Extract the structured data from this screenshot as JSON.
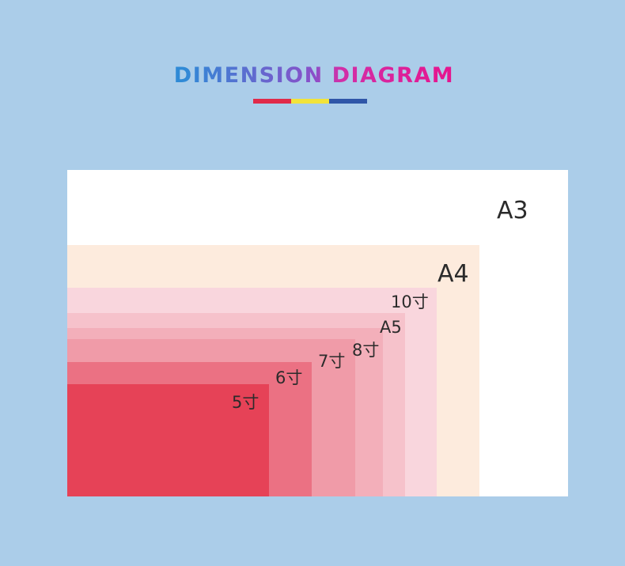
{
  "title": "DIMENSION DIAGRAM",
  "sizes": [
    {
      "label": "A3"
    },
    {
      "label": "A4"
    },
    {
      "label": "10寸"
    },
    {
      "label": "A5"
    },
    {
      "label": "8寸"
    },
    {
      "label": "7寸"
    },
    {
      "label": "6寸"
    },
    {
      "label": "5寸"
    }
  ]
}
